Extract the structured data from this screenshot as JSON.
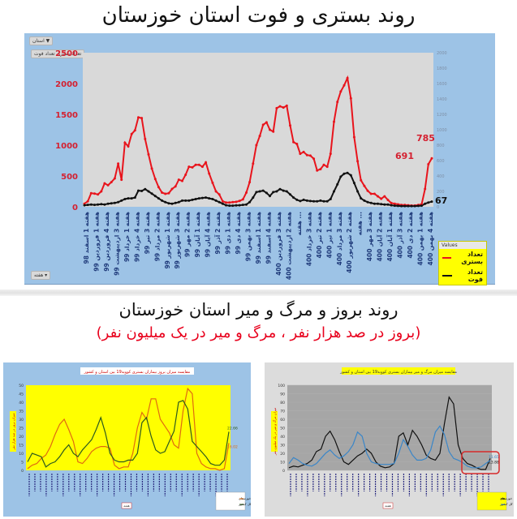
{
  "page": {
    "title_top": "روند بستری و فوت استان خوزستان",
    "title_bottom": "روند بروز و مرگ و میر استان خوزستان",
    "subtitle_bottom": "(بروز در صد هزار نفر ، مرگ و میر در یک میلیون نفر)"
  },
  "main_chart": {
    "filter_button": "استان",
    "field_buttons": [
      "تعداد بستری",
      "تعداد فوت"
    ],
    "week_button": "هفته",
    "legend_header": "Values",
    "legend": [
      {
        "label": "تعداد بستری",
        "color": "#e8141c"
      },
      {
        "label": "تعداد فوت",
        "color": "#111111"
      }
    ],
    "annotations": {
      "hosp_prev": "691",
      "hosp_last": "785",
      "death_last": "67"
    },
    "colors": {
      "panel": "#9dc3e6",
      "plot": "#d9d9d9",
      "left_axis": "#d42030",
      "x_labels": "#1f3a7a"
    }
  },
  "chart_data": [
    {
      "type": "line",
      "title": "روند بستری و فوت استان خوزستان",
      "xlabel": "هفته",
      "ylabel": "",
      "ylim": [
        0,
        2500
      ],
      "ylim_secondary": [
        0,
        2000
      ],
      "y_ticks": [
        0,
        500,
        1000,
        1500,
        2000,
        2500
      ],
      "y_ticks_secondary": [
        0,
        200,
        400,
        600,
        800,
        1000,
        1200,
        1400,
        1600,
        1800,
        2000
      ],
      "grid": false,
      "legend_position": "bottom-right",
      "categories": [
        "هفته 1 اسفند 98",
        "هفته 1 فروردین 99",
        "هفته 4 فروردین 99",
        "هفته 3 اردیبهشت 99",
        "هفته 1 خرداد 99",
        "هفته 4 خرداد 99",
        "هفته 3 تیر 99",
        "هفته 2 مرداد 99",
        "هفته 1 شهریور 99",
        "هفته 3 شهریور 99",
        "هفته 2 مهر 99",
        "هفته 1 آبان 99",
        "هفته 4 آبان 99",
        "هفته 2 آذر 99",
        "هفته 1 دی 99",
        "هفته 4 دی 99",
        "هفته 3 بهمن 99",
        "هفته 1 اسفند 99",
        "هفته 4 اسفند 99",
        "هفته 3 فروردین 400",
        "هفته 2 اردیبهشت 400",
        "هفته ...",
        "هفته 3 خرداد 400",
        "هفته 2 تیر 400",
        "هفته 1 تیر 400",
        "هفته 3 مرداد 400",
        "هفته 2 شهریور 400",
        "هفته ...",
        "هفته 3 مهر 400",
        "هفته 2 آبان 400",
        "هفته 1 آبان 400",
        "هفته 3 آذر 400",
        "هفته 2 دی 400",
        "هفته 1 بهمن 400",
        "هفته 4 بهمن 400"
      ],
      "series": [
        {
          "name": "تعداد بستری",
          "axis": "left",
          "values": [
            50,
            90,
            220,
            215,
            200,
            250,
            380,
            350,
            400,
            460,
            700,
            440,
            1040,
            980,
            1180,
            1240,
            1450,
            1440,
            1100,
            850,
            620,
            450,
            320,
            230,
            210,
            220,
            290,
            330,
            440,
            420,
            520,
            650,
            640,
            680,
            680,
            650,
            720,
            540,
            390,
            250,
            200,
            90,
            70,
            70,
            75,
            80,
            95,
            120,
            230,
            400,
            700,
            1000,
            1150,
            1330,
            1370,
            1250,
            1220,
            1600,
            1630,
            1610,
            1640,
            1320,
            1050,
            1020,
            860,
            890,
            840,
            830,
            780,
            590,
            610,
            680,
            650,
            860,
            1380,
            1700,
            1870,
            1970,
            2090,
            1760,
            1130,
            740,
            430,
            340,
            260,
            210,
            210,
            170,
            130,
            170,
            110,
            60,
            50,
            40,
            30,
            30,
            25,
            20,
            20,
            30,
            40,
            290,
            691,
            785
          ]
        },
        {
          "name": "تعداد فوت",
          "axis": "right",
          "values": [
            20,
            25,
            30,
            25,
            30,
            35,
            30,
            40,
            45,
            50,
            60,
            80,
            100,
            110,
            110,
            120,
            210,
            205,
            230,
            200,
            170,
            140,
            110,
            80,
            60,
            45,
            40,
            50,
            60,
            80,
            80,
            80,
            90,
            100,
            110,
            115,
            120,
            110,
            100,
            80,
            60,
            40,
            20,
            15,
            15,
            18,
            20,
            25,
            30,
            60,
            120,
            190,
            200,
            210,
            180,
            140,
            190,
            200,
            230,
            210,
            200,
            160,
            120,
            90,
            75,
            90,
            80,
            75,
            70,
            70,
            80,
            70,
            70,
            100,
            200,
            290,
            390,
            430,
            440,
            410,
            310,
            200,
            110,
            80,
            60,
            50,
            40,
            40,
            35,
            30,
            30,
            20,
            15,
            12,
            10,
            10,
            10,
            10,
            10,
            12,
            15,
            40,
            55,
            67
          ]
        }
      ]
    },
    {
      "type": "line",
      "title": "مقایسه میزان بروز بیماران بستری کووید19 بین استان و کشور",
      "xlabel": "هفته",
      "ylabel": "میزان بروز در صد هزار نفر",
      "ylim": [
        0,
        50
      ],
      "y_ticks": [
        0,
        5,
        10,
        15,
        20,
        25,
        30,
        35,
        40,
        45,
        50
      ],
      "grid": false,
      "legend_position": "bottom-right",
      "legend": [
        "خوزستان",
        "کل کشور"
      ],
      "series": [
        {
          "name": "خوزستان",
          "color": "#e06a10",
          "values": [
            1,
            3,
            4,
            7,
            9,
            14,
            21,
            27,
            30,
            24,
            17,
            5,
            4,
            7,
            11,
            13,
            14,
            14,
            13,
            3,
            1,
            2,
            2,
            10,
            25,
            34,
            30,
            42,
            42,
            30,
            26,
            22,
            15,
            13,
            35,
            48,
            45,
            10,
            4,
            2,
            1,
            1,
            0,
            1,
            16.02
          ],
          "last_label": "16.02"
        },
        {
          "name": "کل کشور",
          "color": "#2d5a1e",
          "values": [
            5,
            10,
            9,
            8,
            2,
            4,
            5,
            8,
            12,
            15,
            10,
            8,
            12,
            15,
            18,
            24,
            31,
            22,
            10,
            6,
            5,
            5,
            6,
            6,
            10,
            28,
            31,
            20,
            12,
            10,
            11,
            17,
            23,
            40,
            41,
            36,
            17,
            14,
            11,
            8,
            4,
            3,
            3,
            6,
            22.66
          ],
          "last_label": "22.66"
        }
      ]
    },
    {
      "type": "line",
      "title": "مقایسه میزان مرگ و میر بیماران بستری کووید19 بین استان و کشور",
      "xlabel": "هفته",
      "ylabel": "میزان مرگ و میر در یک میلیون نفر",
      "ylim": [
        0,
        100
      ],
      "y_ticks": [
        0,
        10,
        20,
        30,
        40,
        50,
        60,
        70,
        80,
        90,
        100
      ],
      "grid": true,
      "legend_position": "bottom-right",
      "legend": [
        "خوزستان",
        "کل کشور"
      ],
      "series": [
        {
          "name": "خوزستان",
          "color": "#111111",
          "values": [
            3,
            5,
            4,
            6,
            8,
            12,
            22,
            25,
            40,
            46,
            36,
            22,
            10,
            7,
            12,
            17,
            20,
            25,
            20,
            10,
            5,
            3,
            4,
            8,
            40,
            44,
            30,
            47,
            40,
            30,
            18,
            14,
            12,
            20,
            55,
            86,
            78,
            30,
            14,
            8,
            6,
            3,
            1,
            1,
            13.88
          ],
          "last_label": "13.88"
        },
        {
          "name": "کل کشور",
          "color": "#3a86c8",
          "values": [
            8,
            15,
            12,
            8,
            6,
            5,
            8,
            14,
            20,
            24,
            18,
            14,
            17,
            22,
            30,
            45,
            40,
            20,
            10,
            8,
            7,
            7,
            7,
            8,
            20,
            36,
            28,
            18,
            12,
            12,
            14,
            24,
            45,
            52,
            42,
            22,
            14,
            12,
            9,
            5,
            3,
            3,
            4,
            8,
            11.65
          ],
          "last_label": "11.65"
        }
      ]
    }
  ]
}
